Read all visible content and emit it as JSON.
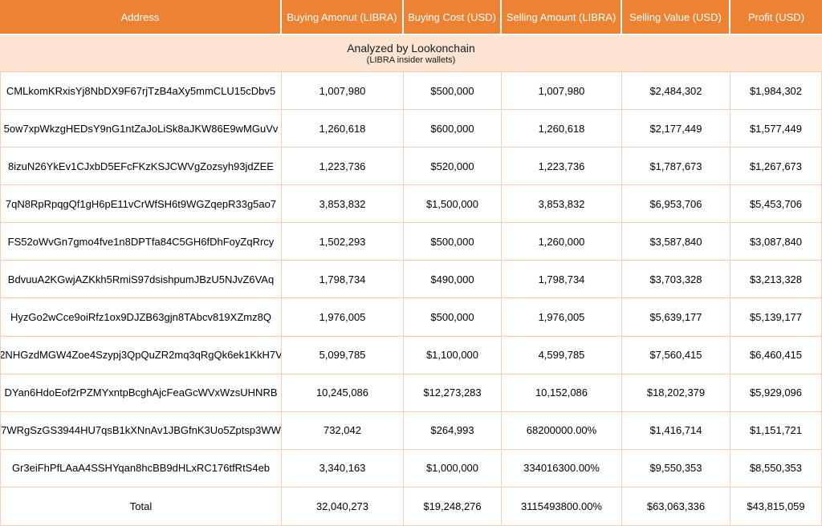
{
  "colors": {
    "header_bg": "#EE8233",
    "header_text": "#FFFFFF",
    "banner_bg": "#FCE4D2",
    "border": "#F7CDB0",
    "row_bg": "#FFFFFF",
    "cell_text": "#000000"
  },
  "banner": {
    "title": "Analyzed by Lookonchain",
    "subtitle": "(LIBRA insider wallets)"
  },
  "chart_data": {
    "type": "table",
    "title": "Analyzed by Lookonchain",
    "subtitle": "(LIBRA insider wallets)",
    "columns": [
      "Address",
      "Buying Amonut (LIBRA)",
      "Buying Cost (USD)",
      "Selling Amount (LIBRA)",
      "Selling Value (USD)",
      "Profit (USD)"
    ],
    "rows": [
      [
        "CMLkomKRxisYj8NbDX9F67rjTzB4aXy5mmCLU15cDbv5",
        "1,007,980",
        "$500,000",
        "1,007,980",
        "$2,484,302",
        "$1,984,302"
      ],
      [
        "5ow7xpWkzgHEDsY9nG1ntZaJoLiSk8aJKW86E9wMGuVv",
        "1,260,618",
        "$600,000",
        "1,260,618",
        "$2,177,449",
        "$1,577,449"
      ],
      [
        "8izuN26YkEv1CJxbD5EFcFKzKSJCWVgZozsyh93jdZEE",
        "1,223,736",
        "$520,000",
        "1,223,736",
        "$1,787,673",
        "$1,267,673"
      ],
      [
        "7qN8RpRpqgQf1gH6pE11vCrWfSH6t9WGZqepR33g5ao7",
        "3,853,832",
        "$1,500,000",
        "3,853,832",
        "$6,953,706",
        "$5,453,706"
      ],
      [
        "FS52oWvGn7gmo4fve1n8DPTfa84C5GH6fDhFoyZqRrcy",
        "1,502,293",
        "$500,000",
        "1,260,000",
        "$3,587,840",
        "$3,087,840"
      ],
      [
        "BdvuuA2KGwjAZKkh5RmiS97dsishpumJBzU5NJvZ6VAq",
        "1,798,734",
        "$490,000",
        "1,798,734",
        "$3,703,328",
        "$3,213,328"
      ],
      [
        "HyzGo2wCce9oiRfz1ox9DJZB63gjn8TAbcv819XZmz8Q",
        "1,976,005",
        "$500,000",
        "1,976,005",
        "$5,639,177",
        "$5,139,177"
      ],
      [
        "2NHGzdMGW4Zoe4Szypj3QpQuZR2mq3qRgQk6ek1KkH7V",
        "5,099,785",
        "$1,100,000",
        "4,599,785",
        "$7,560,415",
        "$6,460,415"
      ],
      [
        "DYan6HdoEof2rPZMYxntpBcghAjcFeaGcWVxWzsUHNRB",
        "10,245,086",
        "$12,273,283",
        "10,152,086",
        "$18,202,379",
        "$5,929,096"
      ],
      [
        "7WRgSzGS3944HU7qsB1kXNnAv1JBGfnK3Uo5Zptsp3WW",
        "732,042",
        "$264,993",
        "68200000.00%",
        "$1,416,714",
        "$1,151,721"
      ],
      [
        "Gr3eiFhPfLAaA4SSHYqan8hcBB9dHLxRC176tfRtS4eb",
        "3,340,163",
        "$1,000,000",
        "334016300.00%",
        "$9,550,353",
        "$8,550,353"
      ],
      [
        "Total",
        "32,040,273",
        "$19,248,276",
        "3115493800.00%",
        "$63,063,336",
        "$43,815,059"
      ]
    ]
  }
}
